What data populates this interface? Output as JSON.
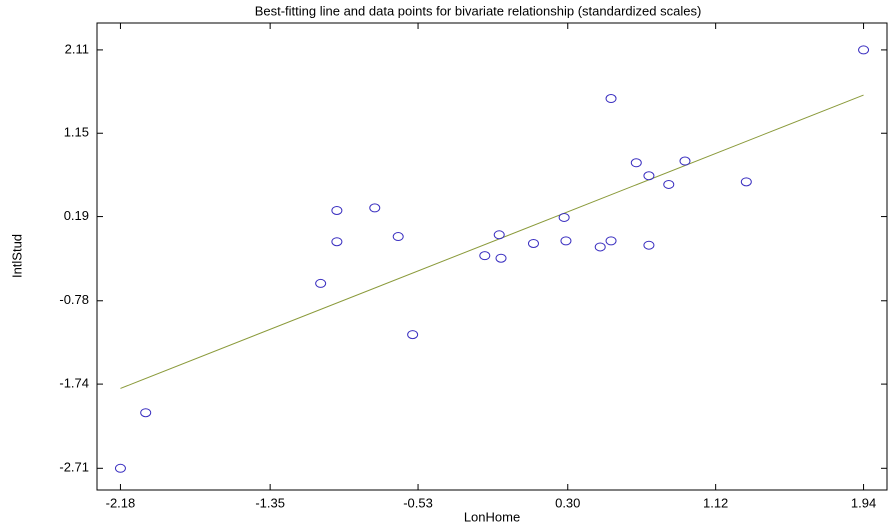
{
  "chart_data": {
    "type": "scatter",
    "title": "Best-fitting line and data points for bivariate relationship (standardized scales)",
    "x_label": "LonHome",
    "y_label": "IntlStud",
    "series": [
      {
        "name": "data points",
        "color": "#3a2fc0",
        "x": [
          -2.18,
          -2.04,
          -1.07,
          -0.98,
          -0.98,
          -0.77,
          -0.64,
          -0.56,
          -0.16,
          -0.08,
          -0.07,
          0.11,
          0.28,
          0.29,
          0.48,
          0.54,
          0.54,
          0.68,
          0.75,
          0.75,
          0.86,
          0.95,
          1.29,
          1.94
        ],
        "values": [
          -2.71,
          -2.07,
          -0.58,
          0.26,
          -0.1,
          0.29,
          -0.04,
          -1.17,
          -0.26,
          -0.02,
          -0.29,
          -0.12,
          0.18,
          -0.09,
          -0.16,
          1.55,
          -0.09,
          0.81,
          0.66,
          -0.14,
          0.56,
          0.83,
          0.59,
          2.11
        ]
      }
    ],
    "fit_line": {
      "color": "#8a9a3a",
      "x": [
        -2.18,
        1.94
      ],
      "values": [
        -1.79,
        1.59
      ]
    },
    "xlim": [
      -2.31,
      2.07
    ],
    "ylim": [
      -2.96,
      2.42
    ],
    "xticks": [
      -2.18,
      -1.35,
      -0.53,
      {
        "value": 0.3,
        "label": "0.30"
      },
      1.12,
      1.94
    ],
    "yticks": [
      -2.71,
      -1.74,
      -0.78,
      0.19,
      1.15,
      2.11
    ]
  }
}
